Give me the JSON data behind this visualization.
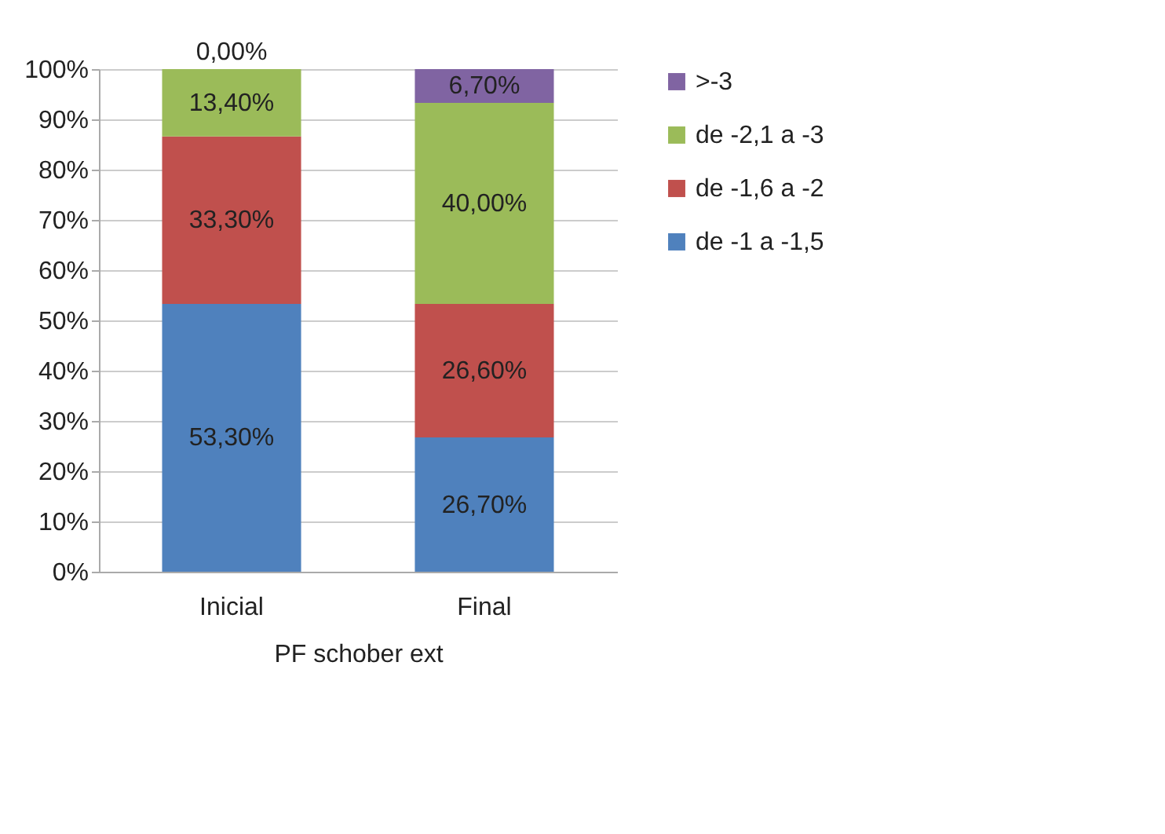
{
  "chart_data": {
    "type": "bar",
    "stacked": true,
    "xlabel": "PF schober ext",
    "categories": [
      "Inicial",
      "Final"
    ],
    "series": [
      {
        "name": "de -1 a -1,5",
        "color": "#4f81bd",
        "values": [
          53.3,
          26.7
        ],
        "value_labels": [
          "53,30%",
          "26,70%"
        ]
      },
      {
        "name": "de -1,6 a -2",
        "color": "#c0504d",
        "values": [
          33.3,
          26.6
        ],
        "value_labels": [
          "33,30%",
          "26,60%"
        ]
      },
      {
        "name": "de -2,1 a -3",
        "color": "#9bbb59",
        "values": [
          13.4,
          40.0
        ],
        "value_labels": [
          "13,40%",
          "40,00%"
        ]
      },
      {
        "name": ">-3",
        "color": "#8064a2",
        "values": [
          0,
          6.7
        ],
        "value_labels": [
          "0,00%",
          "6,70%"
        ]
      }
    ],
    "ylim": [
      0,
      100
    ],
    "yticks": [
      {
        "value": 0,
        "label": "0%"
      },
      {
        "value": 10,
        "label": "10%"
      },
      {
        "value": 20,
        "label": "20%"
      },
      {
        "value": 30,
        "label": "30%"
      },
      {
        "value": 40,
        "label": "40%"
      },
      {
        "value": 50,
        "label": "50%"
      },
      {
        "value": 60,
        "label": "60%"
      },
      {
        "value": 70,
        "label": "70%"
      },
      {
        "value": 80,
        "label": "80%"
      },
      {
        "value": 90,
        "label": "90%"
      },
      {
        "value": 100,
        "label": "100%"
      }
    ],
    "grid": true,
    "legend": "right"
  }
}
